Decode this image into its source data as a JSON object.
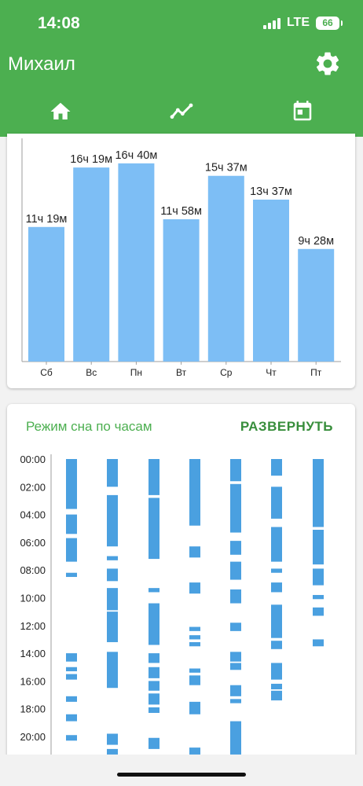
{
  "status_bar": {
    "time": "14:08",
    "network": "LTE",
    "battery": "66"
  },
  "app_bar": {
    "title": "Михаил"
  },
  "tabs": [
    {
      "icon": "home-icon",
      "selected": false
    },
    {
      "icon": "trending-icon",
      "selected": true
    },
    {
      "icon": "calendar-icon",
      "selected": false
    }
  ],
  "colors": {
    "primary": "#4caf50",
    "bar": "#7dbef5",
    "sleep_block": "#4aa0e0",
    "axis": "#9e9e9e"
  },
  "weekly_chart": {
    "chart_data": {
      "type": "bar",
      "categories": [
        "Сб",
        "Вс",
        "Пн",
        "Вт",
        "Ср",
        "Чт",
        "Пт"
      ],
      "values": [
        679,
        979,
        1000,
        718,
        937,
        817,
        568
      ],
      "data_labels": [
        "11ч 19м",
        "16ч 19м",
        "16ч 40м",
        "11ч 58м",
        "15ч 37м",
        "13ч 37м",
        "9ч 28м"
      ],
      "unit": "minutes",
      "ylim": [
        0,
        1150
      ]
    }
  },
  "sleep_chart": {
    "title": "Режим сна по часам",
    "expand_label": "РАЗВЕРНУТЬ",
    "hour_labels": [
      "00:00",
      "02:00",
      "04:00",
      "06:00",
      "08:00",
      "10:00",
      "12:00",
      "14:00",
      "16:00",
      "18:00",
      "20:00"
    ],
    "days": [
      {
        "segments": [
          [
            0,
            3.6
          ],
          [
            4.0,
            5.4
          ],
          [
            5.7,
            7.4
          ],
          [
            8.2,
            8.5
          ],
          [
            14.0,
            14.6
          ],
          [
            15.0,
            15.3
          ],
          [
            15.5,
            15.9
          ],
          [
            17.1,
            17.5
          ],
          [
            18.4,
            18.9
          ],
          [
            19.9,
            20.3
          ]
        ]
      },
      {
        "segments": [
          [
            0,
            2.0
          ],
          [
            2.6,
            6.3
          ],
          [
            7.0,
            7.3
          ],
          [
            7.9,
            8.8
          ],
          [
            9.3,
            10.9
          ],
          [
            11.0,
            13.2
          ],
          [
            13.9,
            16.5
          ],
          [
            19.8,
            20.6
          ],
          [
            20.9,
            21.3
          ]
        ]
      },
      {
        "segments": [
          [
            0,
            2.6
          ],
          [
            2.8,
            7.2
          ],
          [
            9.3,
            9.6
          ],
          [
            10.4,
            13.4
          ],
          [
            14.0,
            14.7
          ],
          [
            15.0,
            15.8
          ],
          [
            16.0,
            16.7
          ],
          [
            16.9,
            17.7
          ],
          [
            17.9,
            18.3
          ],
          [
            20.1,
            20.9
          ]
        ]
      },
      {
        "segments": [
          [
            0,
            4.8
          ],
          [
            6.3,
            7.1
          ],
          [
            8.9,
            9.7
          ],
          [
            12.1,
            12.4
          ],
          [
            12.7,
            13.0
          ],
          [
            13.2,
            13.5
          ],
          [
            15.1,
            15.4
          ],
          [
            15.6,
            16.3
          ],
          [
            17.5,
            18.4
          ],
          [
            20.8,
            21.3
          ]
        ]
      },
      {
        "segments": [
          [
            0,
            1.6
          ],
          [
            1.8,
            5.3
          ],
          [
            5.9,
            6.9
          ],
          [
            7.4,
            8.7
          ],
          [
            9.4,
            10.4
          ],
          [
            11.8,
            12.4
          ],
          [
            13.9,
            14.6
          ],
          [
            14.7,
            15.2
          ],
          [
            16.3,
            17.1
          ],
          [
            17.3,
            17.6
          ],
          [
            18.9,
            21.3
          ]
        ]
      },
      {
        "segments": [
          [
            0,
            1.2
          ],
          [
            2.0,
            4.3
          ],
          [
            4.9,
            7.4
          ],
          [
            7.9,
            8.2
          ],
          [
            8.9,
            9.6
          ],
          [
            10.5,
            12.9
          ],
          [
            13.1,
            13.7
          ],
          [
            14.7,
            15.9
          ],
          [
            16.2,
            16.6
          ],
          [
            16.7,
            17.4
          ]
        ]
      },
      {
        "segments": [
          [
            0,
            4.9
          ],
          [
            5.1,
            7.6
          ],
          [
            7.9,
            9.1
          ],
          [
            9.8,
            10.1
          ],
          [
            10.7,
            11.3
          ],
          [
            13.0,
            13.5
          ]
        ]
      }
    ]
  }
}
